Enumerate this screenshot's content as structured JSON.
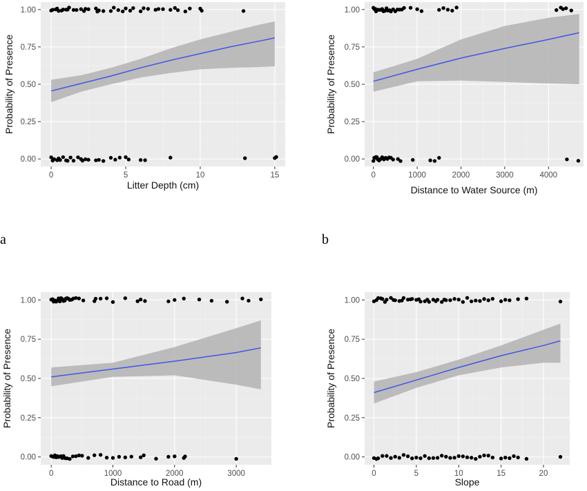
{
  "figure": {
    "panel_labels": [
      "a",
      "b"
    ]
  },
  "colors": {
    "panel_bg": "#ebebeb",
    "grid_major": "#ffffff",
    "grid_minor": "#f4f4f4",
    "ribbon": "#b3b3b3",
    "fit_line": "#3f55e6",
    "points": "#000000",
    "axis_text": "#4d4d4d"
  },
  "chart_data": [
    {
      "id": "litter",
      "type": "scatter",
      "xlabel": "Litter Depth (cm)",
      "ylabel": "Probability of Presence",
      "xlim": [
        -0.7,
        15.7
      ],
      "ylim": [
        -0.05,
        1.05
      ],
      "xticks": [
        0,
        5,
        10,
        15
      ],
      "xtick_labels": [
        "0",
        "5",
        "10",
        "15"
      ],
      "yticks": [
        0,
        0.25,
        0.5,
        0.75,
        1
      ],
      "ytick_labels": [
        "0.00",
        "0.25",
        "0.50",
        "0.75",
        "1.00"
      ],
      "grid": true,
      "points_y1": [
        0,
        0.1,
        0.3,
        0.4,
        0.5,
        0.7,
        0.8,
        1,
        1.1,
        1.2,
        1.5,
        1.7,
        2,
        2.2,
        2.3,
        2.5,
        3,
        3.1,
        3.2,
        3.5,
        4,
        4.2,
        4.5,
        4.8,
        5,
        5.3,
        5.5,
        6,
        6.2,
        6.5,
        7,
        7.2,
        7.5,
        8,
        8.3,
        8.5,
        9,
        9.3,
        10,
        10.1,
        12.9
      ],
      "points_y0": [
        0,
        0.1,
        0.2,
        0.4,
        0.5,
        0.6,
        0.8,
        1,
        1.1,
        1.3,
        1.5,
        1.8,
        2,
        2.1,
        2.3,
        2.5,
        3,
        3.2,
        3.5,
        4,
        4.3,
        4.6,
        5,
        5.2,
        6,
        6.3,
        8,
        13,
        15,
        15.1
      ],
      "fit": {
        "x": [
          0,
          2,
          4,
          6,
          8,
          10,
          12,
          14,
          15
        ],
        "y": [
          0.455,
          0.505,
          0.555,
          0.61,
          0.66,
          0.705,
          0.75,
          0.79,
          0.81
        ]
      },
      "ci": {
        "x": [
          0,
          2,
          4,
          6,
          8,
          10,
          12,
          14,
          15
        ],
        "lower": [
          0.38,
          0.45,
          0.5,
          0.545,
          0.575,
          0.6,
          0.61,
          0.615,
          0.62
        ],
        "upper": [
          0.53,
          0.56,
          0.61,
          0.67,
          0.74,
          0.8,
          0.85,
          0.9,
          0.92
        ]
      }
    },
    {
      "id": "water",
      "type": "scatter",
      "xlabel": "Distance to Water Source (m)",
      "ylabel": "Probability of Presence",
      "xlim": [
        -200,
        4800
      ],
      "ylim": [
        -0.05,
        1.05
      ],
      "xticks": [
        0,
        1000,
        2000,
        3000,
        4000
      ],
      "xtick_labels": [
        "0",
        "1000",
        "2000",
        "3000",
        "4000"
      ],
      "yticks": [
        0,
        0.25,
        0.5,
        0.75,
        1
      ],
      "ytick_labels": [
        "0.00",
        "0.25",
        "0.50",
        "0.75",
        "1.00"
      ],
      "grid": true,
      "points_y1": [
        0,
        20,
        40,
        60,
        80,
        100,
        120,
        150,
        180,
        200,
        230,
        260,
        300,
        330,
        370,
        400,
        450,
        500,
        550,
        600,
        650,
        700,
        850,
        1000,
        1100,
        1500,
        1600,
        1700,
        1800,
        1900,
        4180,
        4280,
        4330,
        4400,
        4520
      ],
      "points_y0": [
        0,
        20,
        40,
        60,
        80,
        100,
        130,
        160,
        200,
        240,
        280,
        320,
        360,
        400,
        450,
        560,
        620,
        900,
        1300,
        1400,
        1500,
        4420,
        4680
      ],
      "fit": {
        "x": [
          0,
          1000,
          2000,
          3000,
          4000,
          4700
        ],
        "y": [
          0.52,
          0.6,
          0.675,
          0.74,
          0.8,
          0.845
        ]
      },
      "ci": {
        "x": [
          0,
          1000,
          2000,
          3000,
          4000,
          4700
        ],
        "lower": [
          0.45,
          0.52,
          0.525,
          0.515,
          0.505,
          0.5
        ],
        "upper": [
          0.58,
          0.67,
          0.8,
          0.89,
          0.945,
          0.97
        ]
      }
    },
    {
      "id": "road",
      "type": "scatter",
      "xlabel": "Distance to Road (m)",
      "ylabel": "Probability of Presence",
      "xlim": [
        -170,
        3570
      ],
      "ylim": [
        -0.05,
        1.05
      ],
      "xticks": [
        0,
        1000,
        2000,
        3000
      ],
      "xtick_labels": [
        "0",
        "1000",
        "2000",
        "3000"
      ],
      "yticks": [
        0,
        0.25,
        0.5,
        0.75,
        1
      ],
      "ytick_labels": [
        "0.00",
        "0.25",
        "0.50",
        "0.75",
        "1.00"
      ],
      "grid": true,
      "points_y1": [
        0,
        20,
        40,
        60,
        80,
        100,
        120,
        140,
        160,
        180,
        200,
        220,
        240,
        260,
        280,
        300,
        330,
        360,
        400,
        450,
        520,
        700,
        720,
        800,
        900,
        1000,
        1200,
        1400,
        1450,
        1520,
        1900,
        2000,
        2150,
        2400,
        2600,
        2850,
        3100,
        3200,
        3400
      ],
      "points_y0": [
        0,
        20,
        40,
        60,
        80,
        100,
        120,
        140,
        160,
        180,
        200,
        230,
        260,
        300,
        350,
        400,
        450,
        500,
        600,
        700,
        800,
        900,
        1000,
        1100,
        1200,
        1300,
        1450,
        1500,
        1700,
        1900,
        2000,
        2150,
        2170,
        3000
      ],
      "fit": {
        "x": [
          0,
          1000,
          2000,
          3000,
          3400
        ],
        "y": [
          0.51,
          0.56,
          0.61,
          0.665,
          0.695
        ]
      },
      "ci": {
        "x": [
          0,
          1000,
          2000,
          3000,
          3400
        ],
        "lower": [
          0.45,
          0.51,
          0.52,
          0.46,
          0.43
        ],
        "upper": [
          0.57,
          0.6,
          0.7,
          0.82,
          0.87
        ]
      }
    },
    {
      "id": "slope",
      "type": "scatter",
      "xlabel": "Slope",
      "ylabel": "Probability of Presence",
      "xlim": [
        -1.1,
        23.1
      ],
      "ylim": [
        -0.05,
        1.05
      ],
      "xticks": [
        0,
        5,
        10,
        15,
        20
      ],
      "xtick_labels": [
        "0",
        "5",
        "10",
        "15",
        "20"
      ],
      "yticks": [
        0,
        0.25,
        0.5,
        0.75,
        1
      ],
      "ytick_labels": [
        "0.00",
        "0.25",
        "0.50",
        "0.75",
        "1.00"
      ],
      "grid": true,
      "points_y1": [
        0,
        0.3,
        0.5,
        0.8,
        1,
        1.3,
        1.5,
        2,
        2.3,
        2.5,
        3,
        3.3,
        3.5,
        4,
        4.3,
        4.5,
        5,
        5.3,
        5.5,
        6,
        6.3,
        6.5,
        7,
        7.3,
        7.5,
        8,
        8.3,
        8.5,
        9,
        9.5,
        10,
        10.5,
        11,
        11.5,
        12,
        12.5,
        13,
        13.5,
        14,
        15,
        15.5,
        16,
        17,
        18,
        22
      ],
      "points_y0": [
        0,
        0.3,
        0.5,
        1,
        1.5,
        2,
        2.5,
        3,
        3.5,
        4,
        4.5,
        5,
        5.5,
        6,
        6.5,
        7,
        7.5,
        8,
        8.5,
        9,
        9.5,
        10,
        10.5,
        11,
        11.5,
        12,
        12.5,
        13,
        13.5,
        14,
        15,
        15.5,
        16,
        16.5,
        17,
        18,
        22
      ],
      "fit": {
        "x": [
          0,
          5,
          10,
          15,
          20,
          22
        ],
        "y": [
          0.41,
          0.49,
          0.57,
          0.645,
          0.71,
          0.74
        ]
      },
      "ci": {
        "x": [
          0,
          5,
          10,
          15,
          20,
          22
        ],
        "lower": [
          0.34,
          0.44,
          0.52,
          0.57,
          0.6,
          0.6
        ],
        "upper": [
          0.48,
          0.54,
          0.62,
          0.71,
          0.81,
          0.85
        ]
      }
    }
  ]
}
